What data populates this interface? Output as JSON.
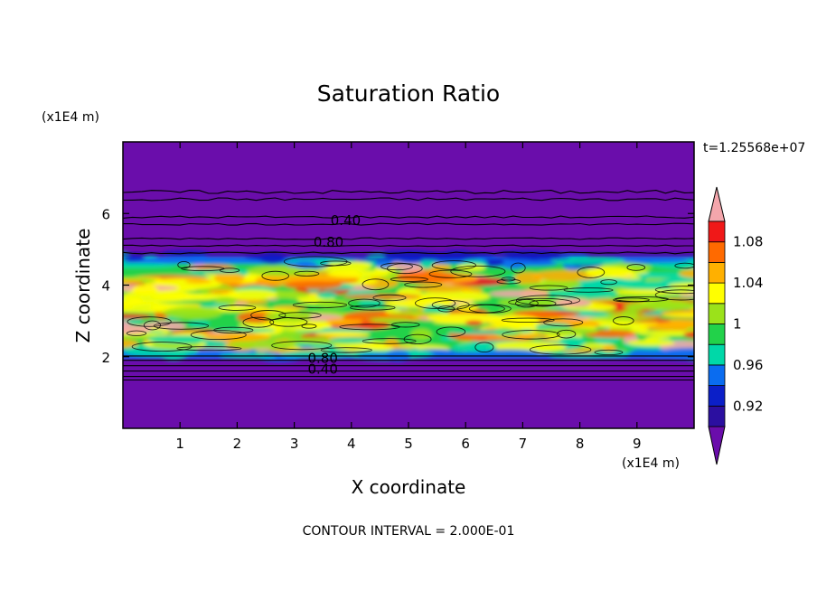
{
  "chart_data": {
    "type": "heatmap",
    "title": "Saturation Ratio",
    "xlabel": "X coordinate",
    "ylabel": "Z coordinate",
    "x_unit": "(x1E4 m)",
    "y_unit": "(x1E4 m)",
    "xlim": [
      0,
      10
    ],
    "ylim": [
      0,
      8
    ],
    "x_ticks": [
      "1",
      "2",
      "3",
      "4",
      "5",
      "6",
      "7",
      "8",
      "9"
    ],
    "y_ticks": [
      "2",
      "4",
      "6"
    ],
    "time_label": "t=1.25568e+07",
    "footer": "CONTOUR INTERVAL = 2.000E-01",
    "colorbar": {
      "bins": [
        {
          "color": "#6a0dab"
        },
        {
          "color": "#2b0fa0"
        },
        {
          "color": "#0b1fc8"
        },
        {
          "color": "#0a6cf0"
        },
        {
          "color": "#00d8a8"
        },
        {
          "color": "#22d24a"
        },
        {
          "color": "#9be21a"
        },
        {
          "color": "#ffff00"
        },
        {
          "color": "#ffb000"
        },
        {
          "color": "#ff6a00"
        },
        {
          "color": "#f01818"
        },
        {
          "color": "#f4a6ac"
        }
      ],
      "labels": [
        "0.92",
        "0.96",
        "1",
        "1.04",
        "1.08"
      ]
    },
    "background_color": "#6a0dab",
    "contour_labels": [
      {
        "text": "0.40",
        "x": 3.9,
        "z": 5.8
      },
      {
        "text": "0.80",
        "x": 3.6,
        "z": 5.2
      },
      {
        "text": "0.80",
        "x": 3.5,
        "z": 1.95
      },
      {
        "text": "0.40",
        "x": 3.5,
        "z": 1.65
      }
    ],
    "z_bands": {
      "moist_layer": [
        2.0,
        4.8
      ],
      "blue_top_edge": [
        4.6,
        4.8
      ],
      "blue_bottom_edge": [
        1.95,
        2.1
      ]
    }
  }
}
